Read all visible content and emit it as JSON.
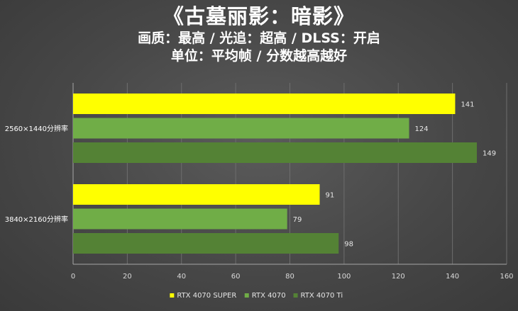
{
  "chart_data": {
    "type": "bar",
    "orientation": "horizontal",
    "title": "《古墓丽影：暗影》",
    "subtitles": [
      "画质：最高 / 光追：超高 / DLSS：开启",
      "单位：平均帧 / 分数越高越好"
    ],
    "categories": [
      "2560×1440分辨率",
      "3840×2160分辨率"
    ],
    "series": [
      {
        "name": "RTX 4070 SUPER",
        "values": [
          141,
          91
        ],
        "color": "#ffff00"
      },
      {
        "name": "RTX 4070",
        "values": [
          124,
          79
        ],
        "color": "#70ad47"
      },
      {
        "name": "RTX 4070 Ti",
        "values": [
          149,
          98
        ],
        "color": "#548235"
      }
    ],
    "xlim": [
      0,
      160
    ],
    "xticks": [
      "0",
      "20",
      "40",
      "60",
      "80",
      "100",
      "120",
      "140",
      "160"
    ],
    "xlabel": "",
    "ylabel": "",
    "grid": "vertical",
    "legend": "bottom",
    "data_labels": true
  }
}
